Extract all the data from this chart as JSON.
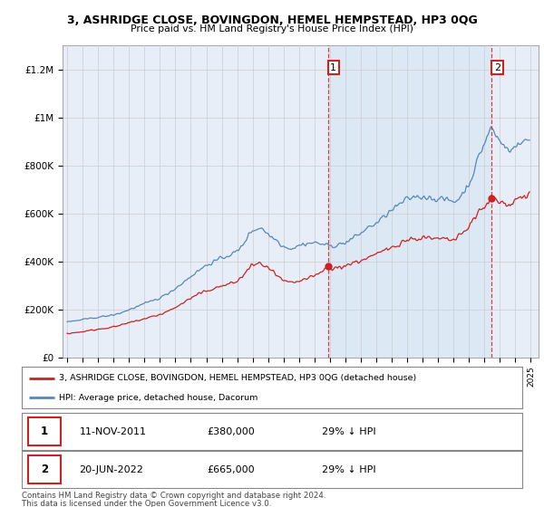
{
  "title": "3, ASHRIDGE CLOSE, BOVINGDON, HEMEL HEMPSTEAD, HP3 0QG",
  "subtitle": "Price paid vs. HM Land Registry's House Price Index (HPI)",
  "ylim": [
    0,
    1300000
  ],
  "yticks": [
    0,
    200000,
    400000,
    600000,
    800000,
    1000000,
    1200000
  ],
  "ytick_labels": [
    "£0",
    "£200K",
    "£400K",
    "£600K",
    "£800K",
    "£1M",
    "£1.2M"
  ],
  "hpi_color": "#5588bb",
  "price_color": "#cc2222",
  "annotation_box_color": "#cc2222",
  "background_color": "#ffffff",
  "plot_bg_color": "#e8eef8",
  "shade_color": "#dde8f5",
  "grid_color": "#cccccc",
  "sale1_year": 2011,
  "sale1_month": 11,
  "sale1_price": 380000,
  "sale1_label": "1",
  "sale2_year": 2022,
  "sale2_month": 6,
  "sale2_price": 665000,
  "sale2_label": "2",
  "legend_line1": "3, ASHRIDGE CLOSE, BOVINGDON, HEMEL HEMPSTEAD, HP3 0QG (detached house)",
  "legend_line2": "HPI: Average price, detached house, Dacorum",
  "note_line1": "Contains HM Land Registry data © Crown copyright and database right 2024.",
  "note_line2": "This data is licensed under the Open Government Licence v3.0.",
  "table_row1": [
    "1",
    "11-NOV-2011",
    "£380,000",
    "29% ↓ HPI"
  ],
  "table_row2": [
    "2",
    "20-JUN-2022",
    "£665,000",
    "29% ↓ HPI"
  ],
  "xmin": 1994.7,
  "xmax": 2025.5
}
